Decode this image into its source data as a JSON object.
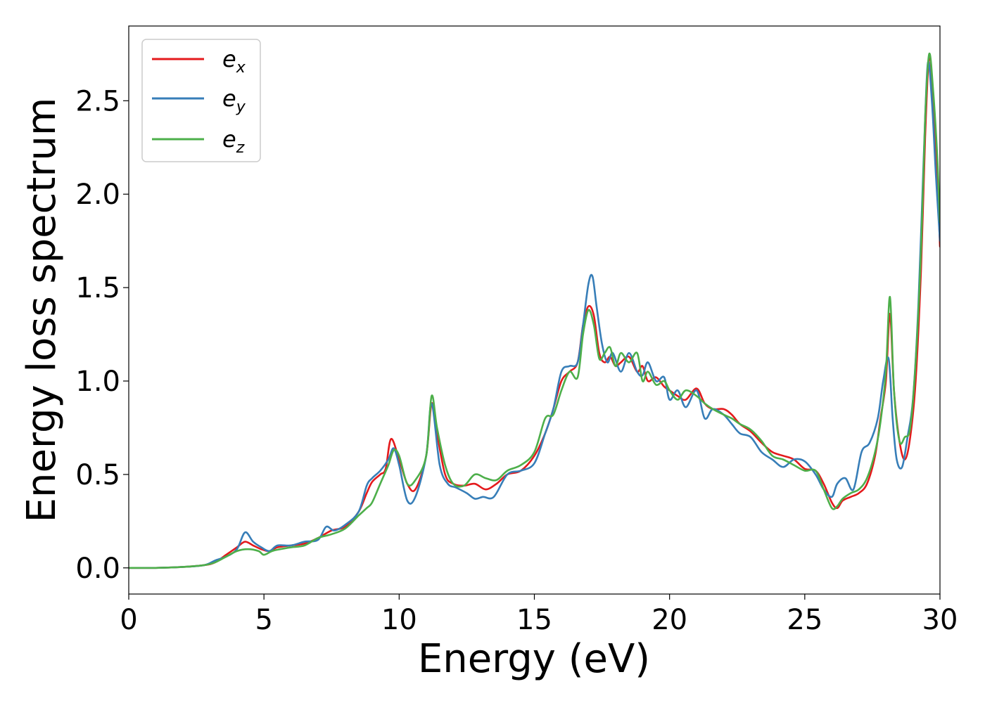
{
  "chart_data": {
    "type": "line",
    "title": "",
    "xlabel": "Energy (eV)",
    "ylabel": "Energy loss spectrum",
    "xlim": [
      0,
      30
    ],
    "ylim": [
      -0.14,
      2.9
    ],
    "xticks": [
      0,
      5,
      10,
      15,
      20,
      25,
      30
    ],
    "xtick_labels": [
      "0",
      "5",
      "10",
      "15",
      "20",
      "25",
      "30"
    ],
    "yticks": [
      0.0,
      0.5,
      1.0,
      1.5,
      2.0,
      2.5
    ],
    "ytick_labels": [
      "0.0",
      "0.5",
      "1.0",
      "1.5",
      "2.0",
      "2.5"
    ],
    "grid": false,
    "legend_position": "top-left",
    "series": [
      {
        "name": "e_x",
        "label_main": "e",
        "label_sub": "x",
        "color": "#e41a1c",
        "x": [
          0,
          1,
          2,
          2.8,
          3.2,
          3.6,
          4.0,
          4.3,
          4.6,
          4.9,
          5.2,
          5.5,
          6.0,
          6.5,
          7.0,
          7.5,
          8.0,
          8.5,
          8.8,
          9.0,
          9.3,
          9.5,
          9.7,
          10.0,
          10.3,
          10.6,
          11.0,
          11.2,
          11.4,
          11.7,
          12.0,
          12.4,
          12.8,
          13.2,
          13.6,
          14.0,
          14.5,
          15.0,
          15.4,
          15.7,
          16.0,
          16.3,
          16.6,
          16.8,
          17.0,
          17.2,
          17.4,
          17.6,
          17.8,
          18.0,
          18.2,
          18.5,
          18.8,
          19.0,
          19.2,
          19.5,
          19.8,
          20.0,
          20.3,
          20.6,
          21.0,
          21.3,
          21.6,
          22.0,
          22.3,
          22.6,
          23.0,
          23.4,
          23.8,
          24.2,
          24.6,
          25.0,
          25.4,
          25.7,
          26.0,
          26.2,
          26.4,
          26.7,
          27.0,
          27.3,
          27.6,
          27.8,
          28.0,
          28.15,
          28.3,
          28.5,
          28.7,
          28.9,
          29.1,
          29.3,
          29.45,
          29.6,
          29.75,
          29.9,
          30.0
        ],
        "y": [
          0,
          0,
          0.005,
          0.015,
          0.03,
          0.07,
          0.11,
          0.14,
          0.12,
          0.1,
          0.09,
          0.11,
          0.12,
          0.13,
          0.16,
          0.2,
          0.22,
          0.3,
          0.4,
          0.46,
          0.5,
          0.53,
          0.69,
          0.58,
          0.45,
          0.42,
          0.6,
          0.88,
          0.72,
          0.5,
          0.45,
          0.44,
          0.45,
          0.42,
          0.45,
          0.5,
          0.52,
          0.6,
          0.72,
          0.85,
          1.0,
          1.05,
          1.1,
          1.3,
          1.4,
          1.35,
          1.15,
          1.1,
          1.13,
          1.08,
          1.1,
          1.13,
          1.05,
          1.08,
          1.0,
          1.02,
          0.97,
          0.95,
          0.92,
          0.9,
          0.96,
          0.88,
          0.85,
          0.85,
          0.82,
          0.77,
          0.73,
          0.67,
          0.62,
          0.6,
          0.58,
          0.53,
          0.52,
          0.45,
          0.35,
          0.32,
          0.36,
          0.38,
          0.4,
          0.45,
          0.6,
          0.8,
          1.0,
          1.36,
          0.95,
          0.68,
          0.58,
          0.7,
          1.0,
          1.6,
          2.3,
          2.74,
          2.5,
          2.1,
          1.72
        ]
      },
      {
        "name": "e_y",
        "label_main": "e",
        "label_sub": "y",
        "color": "#377eb8",
        "x": [
          0,
          1,
          2,
          2.8,
          3.2,
          3.6,
          4.0,
          4.3,
          4.6,
          4.9,
          5.2,
          5.5,
          6.0,
          6.5,
          7.0,
          7.3,
          7.6,
          8.0,
          8.5,
          8.8,
          9.0,
          9.3,
          9.6,
          9.8,
          10.0,
          10.3,
          10.6,
          11.0,
          11.2,
          11.5,
          11.8,
          12.1,
          12.5,
          12.8,
          13.1,
          13.5,
          14.0,
          14.5,
          15.0,
          15.4,
          15.7,
          16.0,
          16.3,
          16.6,
          16.8,
          17.0,
          17.15,
          17.3,
          17.5,
          17.7,
          17.9,
          18.2,
          18.5,
          18.8,
          19.0,
          19.2,
          19.5,
          19.8,
          20.0,
          20.3,
          20.6,
          21.0,
          21.3,
          21.6,
          22.0,
          22.3,
          22.6,
          23.0,
          23.4,
          23.8,
          24.2,
          24.6,
          25.0,
          25.4,
          25.7,
          26.0,
          26.2,
          26.5,
          26.8,
          27.1,
          27.4,
          27.7,
          27.9,
          28.1,
          28.25,
          28.4,
          28.6,
          28.8,
          29.0,
          29.2,
          29.4,
          29.55,
          29.7,
          29.85,
          30.0
        ],
        "y": [
          0,
          0,
          0.005,
          0.015,
          0.04,
          0.06,
          0.1,
          0.19,
          0.14,
          0.11,
          0.09,
          0.12,
          0.12,
          0.14,
          0.15,
          0.22,
          0.2,
          0.23,
          0.3,
          0.44,
          0.48,
          0.52,
          0.58,
          0.64,
          0.55,
          0.36,
          0.38,
          0.6,
          0.88,
          0.55,
          0.45,
          0.43,
          0.4,
          0.37,
          0.38,
          0.38,
          0.5,
          0.52,
          0.56,
          0.72,
          0.85,
          1.05,
          1.08,
          1.1,
          1.3,
          1.52,
          1.56,
          1.4,
          1.2,
          1.1,
          1.15,
          1.05,
          1.15,
          1.05,
          1.03,
          1.1,
          1.0,
          1.02,
          0.9,
          0.95,
          0.86,
          0.95,
          0.8,
          0.85,
          0.82,
          0.77,
          0.72,
          0.7,
          0.62,
          0.58,
          0.54,
          0.58,
          0.57,
          0.5,
          0.42,
          0.38,
          0.45,
          0.48,
          0.42,
          0.62,
          0.67,
          0.8,
          1.0,
          1.12,
          0.8,
          0.58,
          0.54,
          0.7,
          0.9,
          1.4,
          2.2,
          2.7,
          2.5,
          2.1,
          1.75
        ]
      },
      {
        "name": "e_z",
        "label_main": "e",
        "label_sub": "z",
        "color": "#4daf4a",
        "x": [
          0,
          1,
          2,
          2.8,
          3.2,
          3.6,
          4.0,
          4.4,
          4.8,
          5.0,
          5.3,
          5.6,
          6.0,
          6.5,
          7.0,
          7.5,
          8.0,
          8.5,
          8.8,
          9.0,
          9.3,
          9.6,
          9.8,
          10.0,
          10.3,
          10.6,
          11.0,
          11.2,
          11.4,
          11.7,
          12.0,
          12.4,
          12.8,
          13.2,
          13.6,
          14.0,
          14.5,
          15.0,
          15.4,
          15.7,
          16.0,
          16.3,
          16.6,
          16.8,
          17.0,
          17.2,
          17.4,
          17.6,
          17.8,
          18.0,
          18.2,
          18.5,
          18.8,
          19.0,
          19.2,
          19.5,
          19.8,
          20.0,
          20.3,
          20.6,
          21.0,
          21.3,
          21.6,
          22.0,
          22.3,
          22.6,
          23.0,
          23.4,
          23.8,
          24.2,
          24.6,
          25.0,
          25.4,
          25.7,
          26.0,
          26.2,
          26.4,
          26.7,
          27.0,
          27.3,
          27.6,
          27.8,
          28.0,
          28.15,
          28.3,
          28.5,
          28.7,
          28.9,
          29.1,
          29.3,
          29.45,
          29.6,
          29.75,
          29.9,
          30.0
        ],
        "y": [
          0,
          0,
          0.005,
          0.015,
          0.03,
          0.06,
          0.09,
          0.1,
          0.09,
          0.07,
          0.09,
          0.1,
          0.11,
          0.12,
          0.16,
          0.18,
          0.21,
          0.28,
          0.32,
          0.35,
          0.45,
          0.55,
          0.63,
          0.6,
          0.45,
          0.47,
          0.6,
          0.92,
          0.75,
          0.55,
          0.45,
          0.44,
          0.5,
          0.48,
          0.47,
          0.52,
          0.55,
          0.62,
          0.8,
          0.82,
          0.95,
          1.05,
          1.02,
          1.25,
          1.38,
          1.3,
          1.12,
          1.15,
          1.18,
          1.08,
          1.15,
          1.1,
          1.15,
          1.0,
          1.05,
          0.98,
          1.0,
          0.95,
          0.9,
          0.95,
          0.92,
          0.88,
          0.85,
          0.82,
          0.8,
          0.77,
          0.74,
          0.68,
          0.6,
          0.58,
          0.55,
          0.52,
          0.52,
          0.42,
          0.32,
          0.33,
          0.37,
          0.4,
          0.42,
          0.48,
          0.62,
          0.78,
          1.05,
          1.45,
          0.95,
          0.68,
          0.7,
          0.75,
          1.1,
          1.7,
          2.4,
          2.75,
          2.55,
          2.2,
          1.85
        ]
      }
    ]
  }
}
